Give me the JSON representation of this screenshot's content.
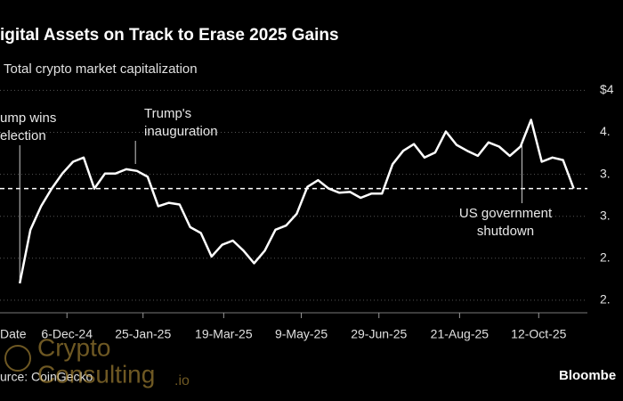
{
  "chart_data": {
    "type": "line",
    "title": "igital Assets on Track to Erase 2025 Gains",
    "subtitle": "Total crypto market capitalization",
    "xlabel": "Date",
    "x": [
      "2024-11-05",
      "2024-11-12",
      "2024-11-19",
      "2024-11-26",
      "2024-12-03",
      "2024-12-10",
      "2024-12-17",
      "2024-12-24",
      "2024-12-31",
      "2025-01-07",
      "2025-01-14",
      "2025-01-21",
      "2025-01-28",
      "2025-02-04",
      "2025-02-11",
      "2025-02-18",
      "2025-02-25",
      "2025-03-04",
      "2025-03-11",
      "2025-03-18",
      "2025-03-25",
      "2025-04-01",
      "2025-04-08",
      "2025-04-15",
      "2025-04-22",
      "2025-04-29",
      "2025-05-06",
      "2025-05-13",
      "2025-05-20",
      "2025-05-27",
      "2025-06-03",
      "2025-06-10",
      "2025-06-17",
      "2025-06-24",
      "2025-07-01",
      "2025-07-08",
      "2025-07-15",
      "2025-07-22",
      "2025-07-29",
      "2025-08-05",
      "2025-08-12",
      "2025-08-19",
      "2025-08-26",
      "2025-09-02",
      "2025-09-09",
      "2025-09-16",
      "2025-09-23",
      "2025-09-30",
      "2025-10-07",
      "2025-10-14",
      "2025-10-21",
      "2025-10-28",
      "2025-11-04"
    ],
    "values": [
      2.2,
      2.84,
      3.12,
      3.33,
      3.51,
      3.65,
      3.7,
      3.33,
      3.51,
      3.51,
      3.56,
      3.54,
      3.47,
      3.12,
      3.16,
      3.14,
      2.87,
      2.8,
      2.52,
      2.66,
      2.71,
      2.59,
      2.44,
      2.59,
      2.84,
      2.89,
      3.03,
      3.35,
      3.43,
      3.33,
      3.28,
      3.29,
      3.22,
      3.27,
      3.27,
      3.62,
      3.78,
      3.86,
      3.7,
      3.76,
      4.01,
      3.85,
      3.78,
      3.72,
      3.88,
      3.83,
      3.72,
      3.83,
      4.15,
      3.65,
      3.7,
      3.67,
      3.33
    ],
    "color": "#ffffff",
    "xlim": [
      "2024-10-23",
      "2025-11-13"
    ],
    "xticks": [
      {
        "value": "2024-12-06",
        "label": "6-Dec-24"
      },
      {
        "value": "2025-01-25",
        "label": "25-Jan-25"
      },
      {
        "value": "2025-03-19",
        "label": "19-Mar-25"
      },
      {
        "value": "2025-05-09",
        "label": "9-May-25"
      },
      {
        "value": "2025-06-29",
        "label": "29-Jun-25"
      },
      {
        "value": "2025-08-21",
        "label": "21-Aug-25"
      },
      {
        "value": "2025-10-12",
        "label": "12-Oct-25"
      }
    ],
    "ylim": [
      1.85,
      4.6
    ],
    "yticks": [
      {
        "value": 4.5,
        "label": "$4"
      },
      {
        "value": 4.0,
        "label": "4."
      },
      {
        "value": 3.5,
        "label": "3."
      },
      {
        "value": 3.0,
        "label": "3."
      },
      {
        "value": 2.5,
        "label": "2."
      },
      {
        "value": 2.0,
        "label": "2."
      }
    ],
    "grid": true,
    "reference_line": 3.33,
    "annotations": [
      {
        "x": "2024-11-05",
        "lines": [
          "ump wins",
          "election"
        ]
      },
      {
        "x": "2025-01-20",
        "lines": [
          "Trump's",
          "inauguration"
        ]
      },
      {
        "x": "2025-10-01",
        "lines": [
          "US government",
          "shutdown"
        ]
      }
    ],
    "source": "urce: CoinGecko",
    "brand": "Bloombe",
    "watermark": [
      "Crypto",
      "Consulting",
      ".io"
    ]
  }
}
